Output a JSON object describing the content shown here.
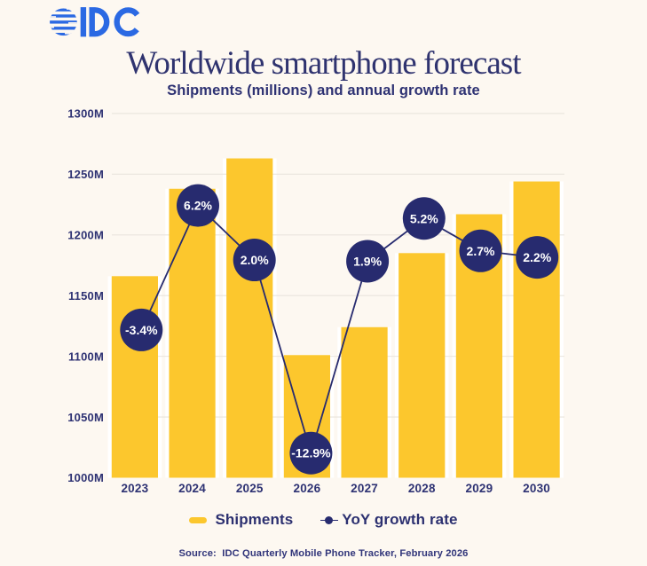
{
  "logo": {
    "brand": "IDC",
    "letters": "IDC"
  },
  "header": {
    "title": "Worldwide smartphone forecast",
    "subtitle": "Shipments (millions) and annual growth rate"
  },
  "legend": {
    "items": [
      {
        "label": "Shipments",
        "marker": "bar-swatch"
      },
      {
        "label": "YoY growth rate",
        "marker": "dot-line-swatch"
      }
    ]
  },
  "footer": {
    "source": "Source:  IDC Quarterly Mobile Phone Tracker, February 2026"
  },
  "colors": {
    "background": "#FDF8F1",
    "bar_yellow": "#FCC72D",
    "navy": "#272B6F",
    "text_navy": "#2E3273",
    "grid": "#E9E5DD",
    "logo_blue": "#2B69E3",
    "circle_text": "#FFFFFF",
    "bar_gap_white": "#FFFFFF"
  },
  "chart_data": {
    "type": "bar",
    "combo": "bar+line",
    "title": "Worldwide smartphone forecast",
    "subtitle": "Shipments (millions) and annual growth rate",
    "categories": [
      "2023",
      "2024",
      "2025",
      "2026",
      "2027",
      "2028",
      "2029",
      "2030"
    ],
    "series": [
      {
        "name": "Shipments",
        "type": "bar",
        "unit": "millions",
        "values": [
          1166,
          1238,
          1263,
          1101,
          1124,
          1185,
          1217,
          1244
        ]
      },
      {
        "name": "YoY growth rate",
        "type": "line",
        "unit": "percent",
        "values": [
          -3.4,
          6.2,
          2.0,
          -12.9,
          1.9,
          5.2,
          2.7,
          2.2
        ],
        "labels": [
          "-3.4%",
          "6.2%",
          "2.0%",
          "-12.9%",
          "1.9%",
          "5.2%",
          "2.7%",
          "2.2%"
        ]
      }
    ],
    "xlabel": "",
    "ylabel": "",
    "y_axis": {
      "min": 1000,
      "max": 1300,
      "step": 50,
      "tick_labels": [
        "1000M",
        "1050M",
        "1100M",
        "1150M",
        "1200M",
        "1250M",
        "1300M"
      ]
    },
    "growth_axis": {
      "min": -14.8,
      "max": 13.3
    },
    "grid": true,
    "legend_position": "bottom"
  }
}
